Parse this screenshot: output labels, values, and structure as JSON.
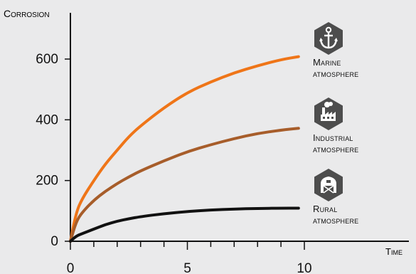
{
  "chart_data": {
    "type": "line",
    "title": "",
    "ylabel": "Corrosion",
    "xlabel": "Time",
    "xlim": [
      0,
      14
    ],
    "ylim": [
      0,
      650
    ],
    "x_ticks": [
      0,
      5,
      10
    ],
    "y_ticks": [
      0,
      200,
      400,
      600
    ],
    "x_minor_ticks": [
      1,
      2,
      3,
      4,
      6,
      7,
      8,
      9
    ],
    "grid": false,
    "legend_placement": "right",
    "series": [
      {
        "name": "Marine atmosphere",
        "color": "#ef7518",
        "icon": "anchor-icon",
        "x": [
          0,
          0.25,
          0.5,
          1,
          1.5,
          2,
          2.5,
          3,
          4,
          5,
          6,
          7,
          8,
          9,
          9.75
        ],
        "y": [
          0,
          95,
          140,
          200,
          255,
          300,
          345,
          380,
          440,
          490,
          525,
          555,
          578,
          598,
          608
        ]
      },
      {
        "name": "Industrial atmosphere",
        "color": "#a75d2a",
        "icon": "factory-icon",
        "x": [
          0,
          0.25,
          0.5,
          1,
          1.5,
          2,
          2.5,
          3,
          4,
          5,
          6,
          7,
          8,
          9,
          9.75
        ],
        "y": [
          0,
          65,
          95,
          135,
          165,
          190,
          212,
          232,
          265,
          295,
          318,
          338,
          355,
          366,
          372
        ]
      },
      {
        "name": "Rural atmosphere",
        "color": "#111111",
        "icon": "barn-icon",
        "x": [
          0,
          0.25,
          0.5,
          1,
          1.5,
          2,
          2.5,
          3,
          4,
          5,
          6,
          7,
          8,
          9,
          9.75
        ],
        "y": [
          0,
          17,
          25,
          40,
          55,
          66,
          74,
          81,
          91,
          98,
          103,
          106,
          108,
          109,
          109
        ]
      }
    ]
  },
  "legend": [
    {
      "line1": "Marine",
      "line2": "atmosphere",
      "icon": "anchor-icon"
    },
    {
      "line1": "Industrial",
      "line2": "atmosphere",
      "icon": "factory-icon"
    },
    {
      "line1": "Rural",
      "line2": "atmosphere",
      "icon": "barn-icon"
    }
  ],
  "colors": {
    "background": "#eaeaeb",
    "icon_fill": "#4d4d4d",
    "axis": "#111111"
  }
}
